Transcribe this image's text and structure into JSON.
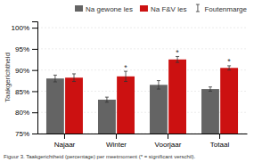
{
  "chart_data": {
    "type": "bar",
    "categories": [
      "Najaar",
      "Winter",
      "Voorjaar",
      "Totaal"
    ],
    "series": [
      {
        "name": "Na gewone les",
        "color": "#646464",
        "values": [
          88.0,
          83.0,
          86.5,
          85.5
        ],
        "errors": [
          0.8,
          0.6,
          1.0,
          0.5
        ]
      },
      {
        "name": "Na F&V les",
        "color": "#cc1111",
        "values": [
          88.2,
          88.5,
          92.5,
          90.5
        ],
        "errors": [
          0.9,
          1.2,
          0.7,
          0.5
        ],
        "significance_labels": [
          null,
          "*",
          "*",
          "*"
        ]
      }
    ],
    "error_label": "Foutenmarge",
    "ylabel": "Taakgerichtheid",
    "caption": "Figuur 3. Taakgerichtheid (percentage) per meetmoment (* = significant verschil).",
    "ylim": [
      75,
      101.5
    ],
    "yticks": [
      {
        "value": 75,
        "label": "75%"
      },
      {
        "value": 80,
        "label": "80%"
      },
      {
        "value": 85,
        "label": "85%"
      },
      {
        "value": 90,
        "label": "90%"
      },
      {
        "value": 95,
        "label": "95%"
      },
      {
        "value": 100,
        "label": "100%"
      }
    ],
    "grid": true,
    "legend": "top"
  }
}
